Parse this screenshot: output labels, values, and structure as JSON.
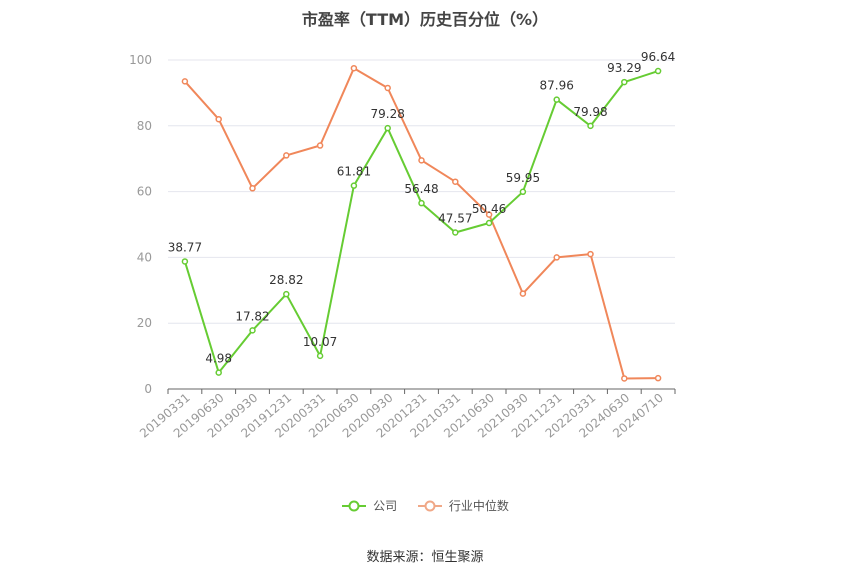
{
  "chart_data": {
    "type": "line",
    "title": "市盈率（TTM）历史百分位（%）",
    "categories": [
      "20190331",
      "20190630",
      "20190930",
      "20191231",
      "20200331",
      "20200630",
      "20200930",
      "20201231",
      "20210331",
      "20210630",
      "20210930",
      "20211231",
      "20220331",
      "20240630",
      "20240710"
    ],
    "series": [
      {
        "name": "公司",
        "color": "#66cc33",
        "values": [
          38.77,
          4.98,
          17.82,
          28.82,
          10.07,
          61.81,
          79.28,
          56.48,
          47.57,
          50.46,
          59.95,
          87.96,
          79.98,
          93.29,
          96.64
        ],
        "labels": [
          "38.77",
          "4.98",
          "17.82",
          "28.82",
          "10.07",
          "61.81",
          "79.28",
          "56.48",
          "47.57",
          "50.46",
          "59.95",
          "87.96",
          "79.98",
          "93.29",
          "96.64"
        ]
      },
      {
        "name": "行业中位数",
        "color": "#f0875a",
        "values": [
          93.5,
          82,
          61,
          71,
          74,
          97.5,
          91.5,
          69.5,
          63,
          53,
          29,
          40,
          41,
          3.2,
          3.3
        ]
      }
    ],
    "ylim": [
      0,
      100
    ],
    "yticks": [
      0,
      20,
      40,
      60,
      80,
      100
    ],
    "grid": true,
    "legend": "bottom-center"
  },
  "source": "数据来源：恒生聚源"
}
